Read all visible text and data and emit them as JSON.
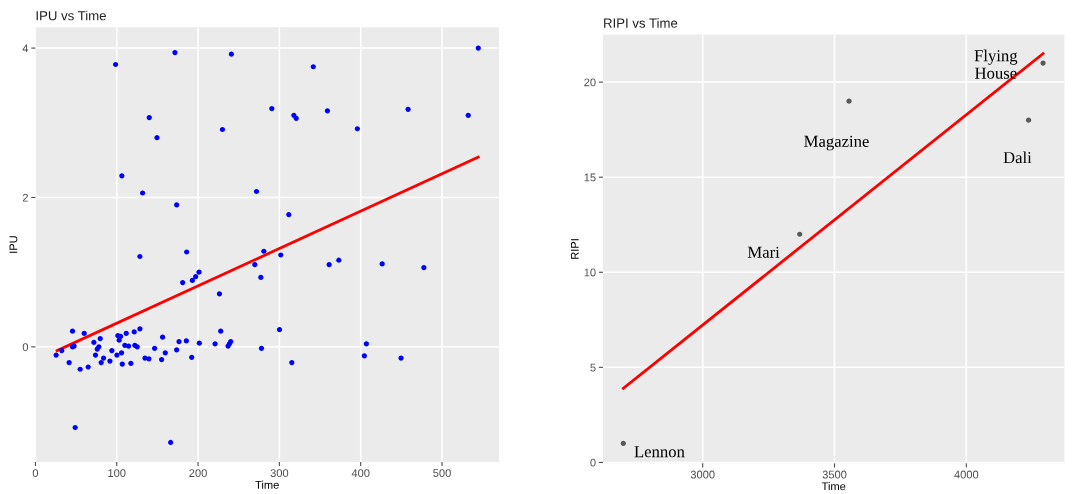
{
  "chart_data": [
    {
      "type": "scatter",
      "title": "IPU vs Time",
      "xlabel": "Time",
      "ylabel": "IPU",
      "xlim": [
        0,
        570
      ],
      "ylim": [
        -1.54,
        4.28
      ],
      "xticks": [
        0,
        100,
        200,
        300,
        400,
        500
      ],
      "yticks": [
        0,
        2,
        4
      ],
      "grid": true,
      "series": [
        {
          "marker": "circle",
          "color": "#0000ff",
          "x": [
            25.5,
            32.4,
            41.5,
            45.6,
            45.6,
            47.6,
            48.9,
            55,
            60,
            64.9,
            71.9,
            73.9,
            76,
            78,
            79.7,
            80.9,
            83.8,
            91.6,
            94,
            98.6,
            100.2,
            101.4,
            103,
            104.7,
            105.9,
            106.3,
            106.8,
            110,
            111.7,
            114.6,
            117.4,
            121.5,
            122.3,
            125.2,
            128.5,
            128.5,
            131.8,
            134.7,
            139.6,
            140,
            146.6,
            149.5,
            155.2,
            156.4,
            159.7,
            166.3,
            171.6,
            173.7,
            173.7,
            176.6,
            181.1,
            185.6,
            186,
            192.2,
            193,
            197.1,
            201.2,
            201.6,
            220.9,
            226.3,
            227.9,
            230,
            236.9,
            238.6,
            240.2,
            241,
            269.8,
            271.9,
            277.2,
            278,
            280.9,
            290.7,
            300.2,
            301.7,
            311.6,
            315.3,
            317.8,
            320.7,
            341.7,
            359.1,
            361.2,
            373.1,
            395.9,
            404.5,
            407,
            426.4,
            449.6,
            458.3,
            477.7,
            532.2,
            544.6
          ],
          "values": [
            -0.11,
            -0.05,
            -0.21,
            0.21,
            0.0,
            0.01,
            -1.08,
            -0.3,
            0.18,
            -0.27,
            0.06,
            -0.11,
            -0.03,
            0.0,
            0.11,
            -0.21,
            -0.15,
            -0.19,
            -0.05,
            3.78,
            -0.11,
            0.15,
            0.09,
            0.14,
            -0.08,
            2.29,
            -0.23,
            0.02,
            0.18,
            0.01,
            -0.22,
            0.2,
            0.02,
            0.0,
            1.21,
            0.24,
            2.06,
            -0.15,
            -0.16,
            3.07,
            -0.02,
            2.8,
            -0.17,
            0.13,
            -0.08,
            -1.28,
            3.94,
            -0.04,
            1.9,
            0.07,
            0.86,
            0.08,
            1.27,
            -0.14,
            0.89,
            0.94,
            1.0,
            0.05,
            0.04,
            0.71,
            0.21,
            2.91,
            0.01,
            0.04,
            0.07,
            3.92,
            1.1,
            2.08,
            0.93,
            -0.02,
            1.28,
            3.19,
            0.23,
            1.23,
            1.77,
            -0.21,
            3.1,
            3.06,
            3.75,
            3.16,
            1.1,
            1.16,
            2.92,
            -0.12,
            0.04,
            1.11,
            -0.15,
            3.18,
            1.06,
            3.1,
            4.0
          ]
        },
        {
          "type": "line",
          "color": "#ff0000",
          "x": [
            26.7,
            544.6
          ],
          "values": [
            -0.05,
            2.54
          ]
        }
      ]
    },
    {
      "type": "scatter",
      "title": "RIPI vs Time",
      "xlabel": "Time",
      "ylabel": "RIPI",
      "xlim": [
        2622,
        4372
      ],
      "ylim": [
        -0.05,
        22.5
      ],
      "xticks": [
        3000,
        3500,
        4000
      ],
      "yticks": [
        0,
        5,
        10,
        15,
        20
      ],
      "grid": true,
      "series": [
        {
          "marker": "circle",
          "color": "#595959",
          "x": [
            2699,
            3368,
            3555,
            4236,
            4291
          ],
          "values": [
            1.0,
            12.0,
            19.0,
            18.0,
            21.0
          ]
        },
        {
          "type": "line",
          "color": "#ff0000",
          "x": [
            2699,
            4291
          ],
          "values": [
            3.9,
            21.5
          ]
        }
      ],
      "annotations": [
        {
          "text": "Lennon",
          "x": 2699,
          "y": 1.0
        },
        {
          "text": "Mari",
          "x": 3368,
          "y": 12.0
        },
        {
          "text": "Magazine",
          "x": 3555,
          "y": 19.0
        },
        {
          "text": "Flying\nHouse",
          "x": 4291,
          "y": 21.0
        },
        {
          "text": "Dali",
          "x": 4236,
          "y": 18.0
        }
      ]
    }
  ]
}
